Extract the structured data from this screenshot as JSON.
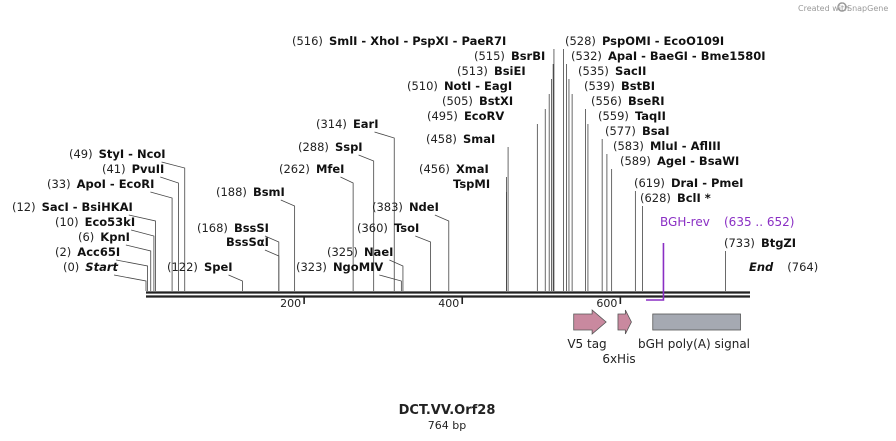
{
  "header": {
    "created_by": "Created with",
    "brand": "SnapGene"
  },
  "map": {
    "title": "DCT.VV.Orf28",
    "length_label": "764 bp",
    "length": 764
  },
  "colors": {
    "primer": "#8a2fc4",
    "tag": "#c9899f",
    "polyA": "#a5a9b2",
    "line": "#222222"
  },
  "sites": [
    {
      "pos": "(0)",
      "name": "Start",
      "italic": true,
      "bp": 0
    },
    {
      "pos": "(2)",
      "name": "Acc65I",
      "bp": 2
    },
    {
      "pos": "(6)",
      "name": "KpnI",
      "bp": 6
    },
    {
      "pos": "(10)",
      "name": "Eco53kI",
      "bp": 10
    },
    {
      "pos": "(12)",
      "name": "SacI  - BsiHKAI",
      "bp": 12
    },
    {
      "pos": "(33)",
      "name": "ApoI  - EcoRI",
      "bp": 33
    },
    {
      "pos": "(41)",
      "name": "PvuII",
      "bp": 41
    },
    {
      "pos": "(49)",
      "name": "StyI  - NcoI",
      "bp": 49
    },
    {
      "pos": "(122)",
      "name": "SpeI",
      "bp": 122
    },
    {
      "pos": "(168)",
      "name": "BssSI",
      "bp": 168
    },
    {
      "pos": "",
      "name": "BssSαI",
      "bp": 168
    },
    {
      "pos": "(188)",
      "name": "BsmI",
      "bp": 188
    },
    {
      "pos": "(262)",
      "name": "MfeI",
      "bp": 262
    },
    {
      "pos": "(288)",
      "name": "SspI",
      "bp": 288
    },
    {
      "pos": "(314)",
      "name": "EarI",
      "bp": 314
    },
    {
      "pos": "(323)",
      "name": "NgoMIV",
      "bp": 323
    },
    {
      "pos": "(325)",
      "name": "NaeI",
      "bp": 325
    },
    {
      "pos": "(360)",
      "name": "TsoI",
      "bp": 360
    },
    {
      "pos": "(383)",
      "name": "NdeI",
      "bp": 383
    },
    {
      "pos": "(456)",
      "name": "XmaI",
      "bp": 456
    },
    {
      "pos": "",
      "name": "TspMI",
      "bp": 456
    },
    {
      "pos": "(458)",
      "name": "SmaI",
      "bp": 458
    },
    {
      "pos": "(495)",
      "name": "EcoRV",
      "bp": 495
    },
    {
      "pos": "(505)",
      "name": "BstXI",
      "bp": 505
    },
    {
      "pos": "(510)",
      "name": "NotI  - EagI",
      "bp": 510
    },
    {
      "pos": "(513)",
      "name": "BsiEI",
      "bp": 513
    },
    {
      "pos": "(515)",
      "name": "BsrBI",
      "bp": 515
    },
    {
      "pos": "(516)",
      "name": "SmlI   - XhoI   - PspXI   - PaeR7I",
      "bp": 516
    },
    {
      "pos": "(528)",
      "name": "PspOMI   - EcoO109I",
      "bp": 528
    },
    {
      "pos": "(532)",
      "name": "ApaI   - BaeGI   - Bme1580I",
      "bp": 532
    },
    {
      "pos": "(535)",
      "name": "SacII",
      "bp": 535
    },
    {
      "pos": "(539)",
      "name": "BstBI",
      "bp": 539
    },
    {
      "pos": "(556)",
      "name": "BseRI",
      "bp": 556
    },
    {
      "pos": "(559)",
      "name": "TaqII",
      "bp": 559
    },
    {
      "pos": "(577)",
      "name": "BsaI",
      "bp": 577
    },
    {
      "pos": "(583)",
      "name": "MluI  - AflIII",
      "bp": 583
    },
    {
      "pos": "(589)",
      "name": "AgeI  - BsaWI",
      "bp": 589
    },
    {
      "pos": "(619)",
      "name": "DraI  - PmeI",
      "bp": 619
    },
    {
      "pos": "(628)",
      "name": "BclI *",
      "bp": 628
    },
    {
      "pos": "(733)",
      "name": "BtgZI",
      "bp": 733
    },
    {
      "pos": "(764)",
      "name": "End",
      "italic": true,
      "bp": 764
    }
  ],
  "primer": {
    "name": "BGH-rev",
    "range": "(635 .. 652)",
    "start": 635,
    "end": 652
  },
  "ticks": [
    {
      "label": "200",
      "bp": 200
    },
    {
      "label": "400",
      "bp": 400
    },
    {
      "label": "600",
      "bp": 600
    }
  ],
  "features": [
    {
      "name": "V5 tag",
      "type": "arrow",
      "start": 541,
      "end": 582
    },
    {
      "name": "6xHis",
      "type": "arrow",
      "start": 597,
      "end": 614
    },
    {
      "name": "bGH poly(A) signal",
      "type": "box",
      "start": 641,
      "end": 752
    }
  ]
}
